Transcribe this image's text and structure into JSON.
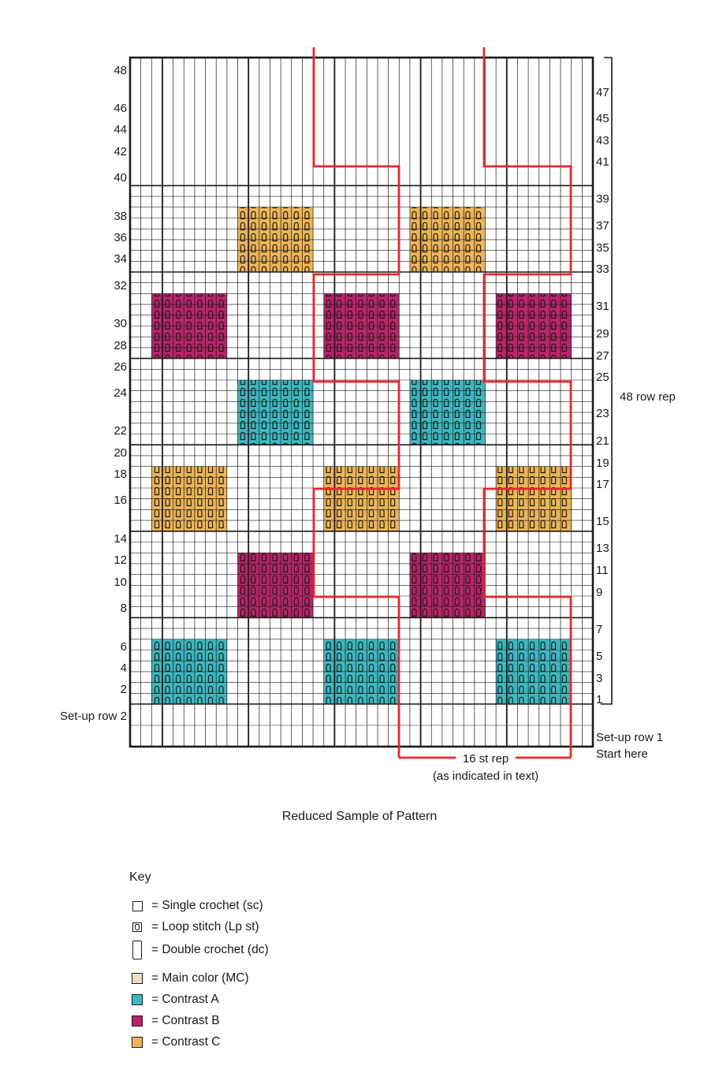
{
  "colors": {
    "main": "#f3dcc6",
    "contrast_a": "#3db8c0",
    "contrast_b": "#b8246a",
    "contrast_c": "#edb657",
    "repeat_line": "#e8272e",
    "grid": "#1a1a1a"
  },
  "chart": {
    "left_row_numbers": [
      "48",
      "46",
      "44",
      "42",
      "40",
      "38",
      "36",
      "34",
      "32",
      "30",
      "28",
      "26",
      "24",
      "22",
      "20",
      "18",
      "16",
      "14",
      "12",
      "10",
      "8",
      "6",
      "4",
      "2"
    ],
    "right_row_numbers": [
      "47",
      "45",
      "43",
      "41",
      "39",
      "37",
      "35",
      "33",
      "31",
      "29",
      "27",
      "25",
      "23",
      "21",
      "19",
      "17",
      "15",
      "13",
      "11",
      "9",
      "7",
      "5",
      "3",
      "1"
    ],
    "setup_row_2": "Set-up row 2",
    "setup_row_1": "Set-up row 1",
    "start_here": "Start here",
    "row_repeat_label": "48 row rep",
    "stitch_repeat_label": "16 st rep",
    "stitch_repeat_note": "(as indicated in text)",
    "blocks": [
      {
        "color": "contrast_c",
        "col_start": 10,
        "row_top": 46,
        "row_bottom": 41
      },
      {
        "color": "contrast_c",
        "col_start": 26,
        "row_top": 46,
        "row_bottom": 41
      },
      {
        "color": "contrast_b",
        "col_start": 2,
        "row_top": 38,
        "row_bottom": 33
      },
      {
        "color": "contrast_b",
        "col_start": 18,
        "row_top": 38,
        "row_bottom": 33
      },
      {
        "color": "contrast_b",
        "col_start": 34,
        "row_top": 38,
        "row_bottom": 33
      },
      {
        "color": "contrast_a",
        "col_start": 10,
        "row_top": 30,
        "row_bottom": 25
      },
      {
        "color": "contrast_a",
        "col_start": 26,
        "row_top": 30,
        "row_bottom": 25
      },
      {
        "color": "contrast_c",
        "col_start": 2,
        "row_top": 22,
        "row_bottom": 17
      },
      {
        "color": "contrast_c",
        "col_start": 18,
        "row_top": 22,
        "row_bottom": 17
      },
      {
        "color": "contrast_c",
        "col_start": 34,
        "row_top": 22,
        "row_bottom": 17
      },
      {
        "color": "contrast_b",
        "col_start": 10,
        "row_top": 14,
        "row_bottom": 9
      },
      {
        "color": "contrast_b",
        "col_start": 26,
        "row_top": 14,
        "row_bottom": 9
      },
      {
        "color": "contrast_a",
        "col_start": 2,
        "row_top": 6,
        "row_bottom": 1
      },
      {
        "color": "contrast_a",
        "col_start": 18,
        "row_top": 6,
        "row_bottom": 1
      },
      {
        "color": "contrast_a",
        "col_start": 34,
        "row_top": 6,
        "row_bottom": 1
      }
    ]
  },
  "caption": "Reduced Sample of Pattern",
  "key": {
    "title": "Key",
    "items": [
      {
        "icon": "single-crochet-icon",
        "text": "= Single crochet (sc)"
      },
      {
        "icon": "loop-stitch-icon",
        "text": "= Loop stitch (Lp st)"
      },
      {
        "icon": "double-crochet-icon",
        "text": "= Double crochet (dc)"
      },
      {
        "icon": "main-color-swatch",
        "text": "= Main color (MC)"
      },
      {
        "icon": "contrast-a-swatch",
        "text": "= Contrast A"
      },
      {
        "icon": "contrast-b-swatch",
        "text": "= Contrast B"
      },
      {
        "icon": "contrast-c-swatch",
        "text": "= Contrast C"
      }
    ]
  }
}
